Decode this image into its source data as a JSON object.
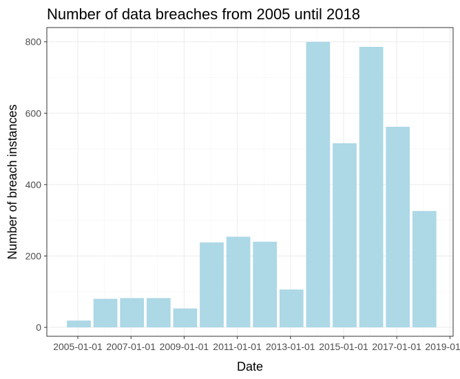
{
  "chart_data": {
    "type": "bar",
    "title": "Number of data breaches from 2005 until 2018",
    "xlabel": "Date",
    "ylabel": "Number of breach instances",
    "x_tick_labels": [
      "2005-01-01",
      "2007-01-01",
      "2009-01-01",
      "2011-01-01",
      "2013-01-01",
      "2015-01-01",
      "2017-01-01",
      "2019-01-01"
    ],
    "y_ticks": [
      0,
      200,
      400,
      600,
      800
    ],
    "ylim": [
      -25,
      840
    ],
    "grid": true,
    "bar_color": "#add8e6",
    "categories": [
      "2005",
      "2006",
      "2007",
      "2008",
      "2009",
      "2010",
      "2011",
      "2012",
      "2013",
      "2014",
      "2015",
      "2016",
      "2017",
      "2018"
    ],
    "values": [
      19,
      80,
      82,
      82,
      53,
      238,
      254,
      240,
      106,
      800,
      516,
      786,
      562,
      326
    ]
  }
}
